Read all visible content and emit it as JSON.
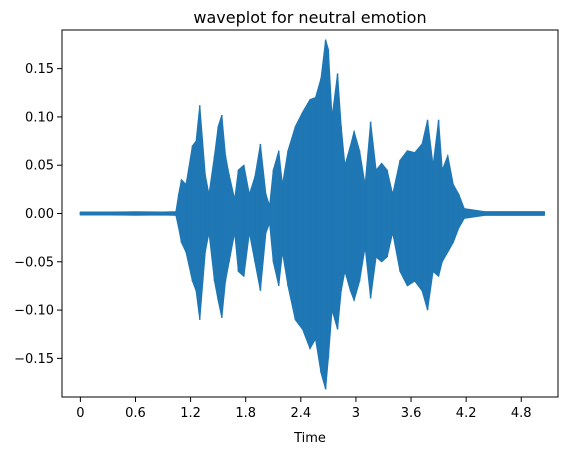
{
  "chart_data": {
    "type": "area",
    "title": "waveplot for neutral emotion",
    "xlabel": "Time",
    "ylabel": "",
    "xlim": [
      -0.2,
      5.2
    ],
    "ylim": [
      -0.19,
      0.19
    ],
    "x_ticks": [
      0,
      0.6,
      1.2,
      1.8,
      2.4,
      3.0,
      3.6,
      4.2,
      4.8
    ],
    "x_tick_labels": [
      "0",
      "0.6",
      "1.2",
      "1.8",
      "2.4",
      "3",
      "3.6",
      "4.2",
      "4.8"
    ],
    "y_ticks": [
      -0.15,
      -0.1,
      -0.05,
      0.0,
      0.05,
      0.1,
      0.15
    ],
    "y_tick_labels": [
      "−0.15",
      "−0.10",
      "−0.05",
      "0.00",
      "0.05",
      "0.10",
      "0.15"
    ],
    "grid": false,
    "series": [
      {
        "color": "#1f77b4",
        "x": [
          0.0,
          0.3,
          0.6,
          0.9,
          1.04,
          1.07,
          1.1,
          1.15,
          1.22,
          1.26,
          1.3,
          1.36,
          1.4,
          1.46,
          1.5,
          1.54,
          1.58,
          1.62,
          1.68,
          1.72,
          1.78,
          1.84,
          1.9,
          1.96,
          2.02,
          2.06,
          2.1,
          2.16,
          2.2,
          2.26,
          2.34,
          2.42,
          2.5,
          2.56,
          2.62,
          2.67,
          2.7,
          2.74,
          2.8,
          2.84,
          2.88,
          2.94,
          2.98,
          3.04,
          3.1,
          3.16,
          3.22,
          3.28,
          3.34,
          3.4,
          3.48,
          3.56,
          3.64,
          3.72,
          3.78,
          3.84,
          3.9,
          3.94,
          4.0,
          4.06,
          4.12,
          4.18,
          4.4,
          4.7,
          5.05
        ],
        "upper": [
          0.0015,
          0.0015,
          0.0018,
          0.0015,
          0.002,
          0.02,
          0.035,
          0.03,
          0.07,
          0.075,
          0.112,
          0.04,
          0.02,
          0.06,
          0.09,
          0.102,
          0.06,
          0.04,
          0.015,
          0.045,
          0.05,
          0.02,
          0.038,
          0.072,
          0.02,
          0.008,
          0.045,
          0.065,
          0.03,
          0.065,
          0.09,
          0.105,
          0.118,
          0.12,
          0.14,
          0.18,
          0.17,
          0.1,
          0.145,
          0.09,
          0.05,
          0.07,
          0.085,
          0.065,
          0.03,
          0.095,
          0.045,
          0.052,
          0.045,
          0.02,
          0.055,
          0.065,
          0.063,
          0.072,
          0.097,
          0.05,
          0.097,
          0.045,
          0.06,
          0.03,
          0.02,
          0.005,
          0.002,
          0.002,
          0.002
        ],
        "lower": [
          -0.0015,
          -0.0015,
          -0.0018,
          -0.0015,
          -0.002,
          -0.015,
          -0.03,
          -0.04,
          -0.07,
          -0.08,
          -0.11,
          -0.04,
          -0.02,
          -0.07,
          -0.09,
          -0.108,
          -0.07,
          -0.05,
          -0.02,
          -0.06,
          -0.065,
          -0.02,
          -0.05,
          -0.08,
          -0.02,
          -0.01,
          -0.05,
          -0.075,
          -0.04,
          -0.075,
          -0.11,
          -0.12,
          -0.14,
          -0.13,
          -0.165,
          -0.182,
          -0.15,
          -0.1,
          -0.12,
          -0.08,
          -0.06,
          -0.08,
          -0.09,
          -0.07,
          -0.035,
          -0.088,
          -0.045,
          -0.05,
          -0.045,
          -0.02,
          -0.06,
          -0.075,
          -0.07,
          -0.08,
          -0.1,
          -0.06,
          -0.065,
          -0.05,
          -0.04,
          -0.03,
          -0.015,
          -0.005,
          -0.002,
          -0.002,
          -0.002
        ]
      }
    ]
  }
}
